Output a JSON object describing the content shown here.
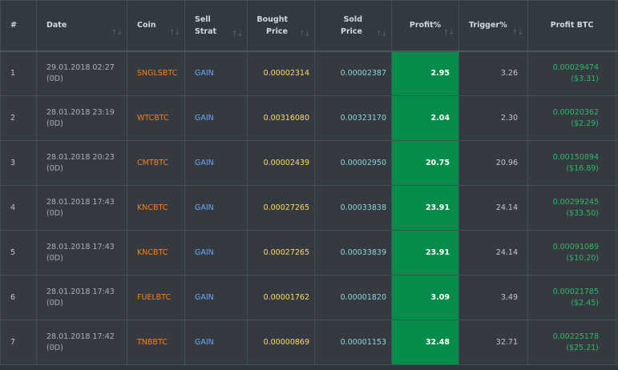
{
  "headers": {
    "num": "#",
    "date": "Date",
    "coin": "Coin",
    "sell_strat_1": "Sell",
    "sell_strat_2": "Strat",
    "bought_1": "Bought",
    "bought_2": "Price",
    "sold_1": "Sold",
    "sold_2": "Price",
    "profit_pct": "Profit%",
    "trigger_pct": "Trigger%",
    "profit_btc": "Profit BTC",
    "sort_arrows": "↑↓",
    "sort_arrows_active": "↑↓"
  },
  "rows": [
    {
      "num": "1",
      "date": "29.01.2018 02:27",
      "age": "(0D)",
      "coin": "SNGLSBTC",
      "strat": "GAIN",
      "bought": "0.00002314",
      "sold": "0.00002387",
      "profit": "2.95",
      "trigger": "3.26",
      "profit_btc": "0.00029474",
      "profit_usd": "($3.31)"
    },
    {
      "num": "2",
      "date": "28.01.2018 23:19",
      "age": "(0D)",
      "coin": "WTCBTC",
      "strat": "GAIN",
      "bought": "0.00316080",
      "sold": "0.00323170",
      "profit": "2.04",
      "trigger": "2.30",
      "profit_btc": "0.00020362",
      "profit_usd": "($2.29)"
    },
    {
      "num": "3",
      "date": "28.01.2018 20:23",
      "age": "(0D)",
      "coin": "CMTBTC",
      "strat": "GAIN",
      "bought": "0.00002439",
      "sold": "0.00002950",
      "profit": "20.75",
      "trigger": "20.96",
      "profit_btc": "0.00150894",
      "profit_usd": "($16.89)"
    },
    {
      "num": "4",
      "date": "28.01.2018 17:43",
      "age": "(0D)",
      "coin": "KNCBTC",
      "strat": "GAIN",
      "bought": "0.00027265",
      "sold": "0.00033838",
      "profit": "23.91",
      "trigger": "24.14",
      "profit_btc": "0.00299245",
      "profit_usd": "($33.50)"
    },
    {
      "num": "5",
      "date": "28.01.2018 17:43",
      "age": "(0D)",
      "coin": "KNCBTC",
      "strat": "GAIN",
      "bought": "0.00027265",
      "sold": "0.00033839",
      "profit": "23.91",
      "trigger": "24.14",
      "profit_btc": "0.00091089",
      "profit_usd": "($10.20)"
    },
    {
      "num": "6",
      "date": "28.01.2018 17:43",
      "age": "(0D)",
      "coin": "FUELBTC",
      "strat": "GAIN",
      "bought": "0.00001762",
      "sold": "0.00001820",
      "profit": "3.09",
      "trigger": "3.49",
      "profit_btc": "0.00021785",
      "profit_usd": "($2.45)"
    },
    {
      "num": "7",
      "date": "28.01.2018 17:42",
      "age": "(0D)",
      "coin": "TNBBTC",
      "strat": "GAIN",
      "bought": "0.00000869",
      "sold": "0.00001153",
      "profit": "32.48",
      "trigger": "32.71",
      "profit_btc": "0.00225178",
      "profit_usd": "($25.21)"
    }
  ]
}
